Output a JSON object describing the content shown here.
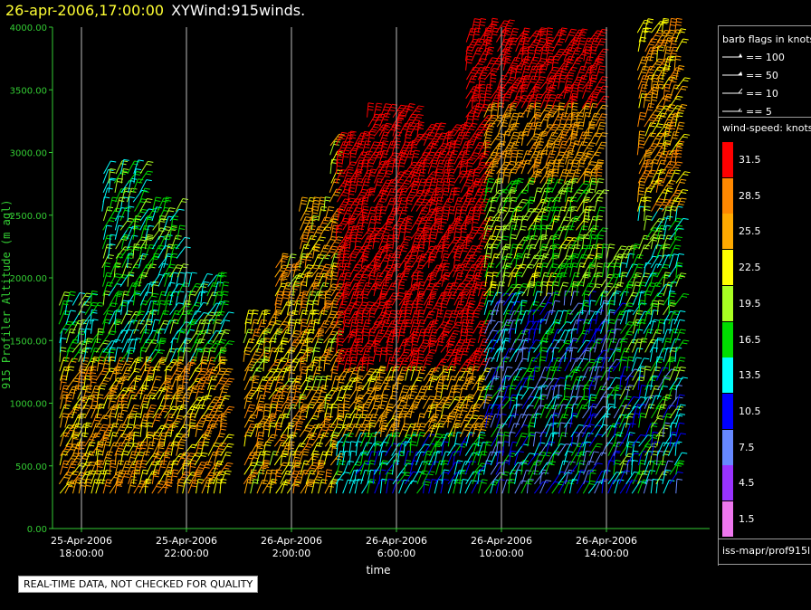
{
  "header": {
    "datetime": "26-apr-2006,17:00:00",
    "product": "XYWind:915winds."
  },
  "colors": {
    "axis": "#33cc33",
    "grid": "#bbbbbb",
    "title_datetime": "#ffff33"
  },
  "chart_data": {
    "type": "wind-barb time-height",
    "xlabel": "time",
    "ylabel": "915 Profiler Altitude (m agl)",
    "ylim": [
      0,
      4000
    ],
    "xlim_hours_label": "25-Apr-2006 16:00 to 26-Apr-2006 17:00",
    "y_ticks": [
      "4000.00",
      "3500.00",
      "3000.00",
      "2500.00",
      "2000.00",
      "1500.00",
      "1000.00",
      "500.00",
      "0.00"
    ],
    "x_ticks": [
      {
        "date": "25-Apr-2006",
        "time": "18:00:00"
      },
      {
        "date": "25-Apr-2006",
        "time": "22:00:00"
      },
      {
        "date": "26-Apr-2006",
        "time": "2:00:00"
      },
      {
        "date": "26-Apr-2006",
        "time": "6:00:00"
      },
      {
        "date": "26-Apr-2006",
        "time": "10:00:00"
      },
      {
        "date": "26-Apr-2006",
        "time": "14:00:00"
      }
    ],
    "grid": "vertical lines at x ticks",
    "barb_legend": {
      "title": "barb flags in knots",
      "entries": [
        "== 100",
        "== 50",
        "== 10",
        "== 5"
      ]
    },
    "speed_legend": {
      "title": "wind-speed: knots",
      "bins": [
        {
          "label": "31.5",
          "color": "#ff0000"
        },
        {
          "label": "28.5",
          "color": "#ff8800"
        },
        {
          "label": "25.5",
          "color": "#ffaa00"
        },
        {
          "label": "22.5",
          "color": "#ffff00"
        },
        {
          "label": "19.5",
          "color": "#aaff22"
        },
        {
          "label": "16.5",
          "color": "#00dd00"
        },
        {
          "label": "13.5",
          "color": "#00ffff"
        },
        {
          "label": "10.5",
          "color": "#0000ff"
        },
        {
          "label": "7.5",
          "color": "#6688ff"
        },
        {
          "label": "4.5",
          "color": "#9933ff"
        },
        {
          "label": "1.5",
          "color": "#ee77ee"
        }
      ]
    },
    "source": "iss-mapr/prof915l"
  },
  "footer": {
    "quality_note": "REAL-TIME DATA, NOT CHECKED FOR QUALITY"
  }
}
